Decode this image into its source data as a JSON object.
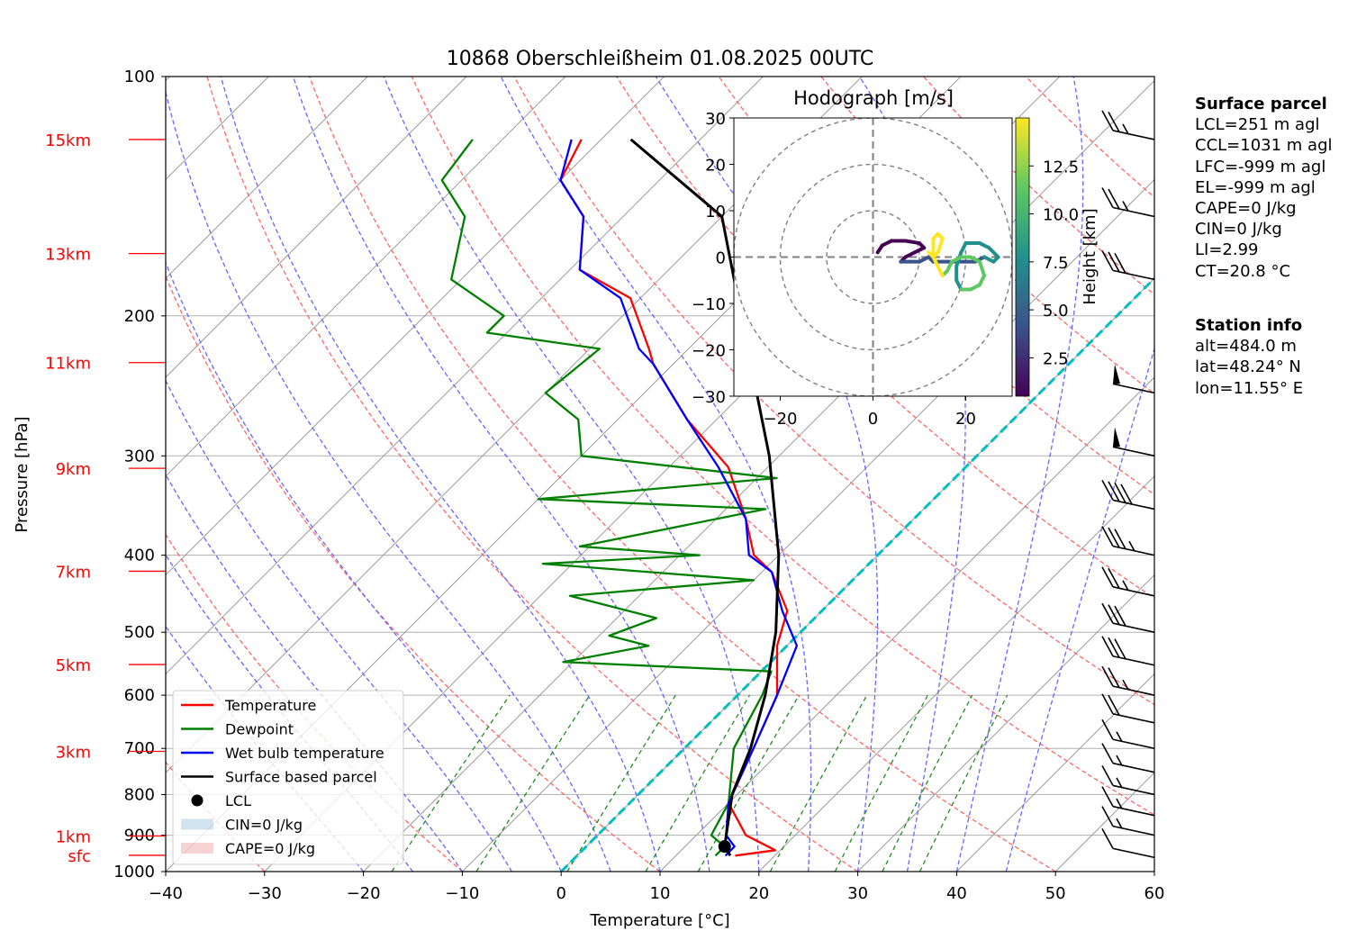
{
  "title": "10868 Oberschleißheim 01.08.2025 00UTC",
  "chart_data": {
    "type": "line",
    "subtype": "skew-t log-p diagram",
    "xlabel": "Temperature [°C]",
    "ylabel": "Pressure [hPa]",
    "xlim": [
      -40,
      60
    ],
    "ylim": [
      1000,
      100
    ],
    "y_scale": "log",
    "x_ticks": [
      -40,
      -30,
      -20,
      -10,
      0,
      10,
      20,
      30,
      40,
      50,
      60
    ],
    "x_tick_labels": [
      "−40",
      "−30",
      "−20",
      "−10",
      "0",
      "10",
      "20",
      "30",
      "40",
      "50",
      "60"
    ],
    "y_ticks": [
      100,
      200,
      300,
      400,
      500,
      600,
      700,
      800,
      900,
      1000
    ],
    "y_tick_labels": [
      "100",
      "200",
      "300",
      "400",
      "500",
      "600",
      "700",
      "800",
      "900",
      "1000"
    ],
    "height_markers": [
      {
        "label": "15km",
        "p": 120
      },
      {
        "label": "13km",
        "p": 167
      },
      {
        "label": "11km",
        "p": 229
      },
      {
        "label": "9km",
        "p": 311
      },
      {
        "label": "7km",
        "p": 419
      },
      {
        "label": "5km",
        "p": 549
      },
      {
        "label": "3km",
        "p": 706
      },
      {
        "label": "1km",
        "p": 902
      },
      {
        "label": "sfc",
        "p": 954
      }
    ],
    "series": [
      {
        "name": "Temperature",
        "color": "#ff0000",
        "points": [
          [
            16,
            955
          ],
          [
            19.5,
            940
          ],
          [
            15,
            900
          ],
          [
            10,
            820
          ],
          [
            7,
            700
          ],
          [
            4,
            600
          ],
          [
            -1,
            520
          ],
          [
            -3.5,
            470
          ],
          [
            -9,
            420
          ],
          [
            -12.5,
            400
          ],
          [
            -17,
            360
          ],
          [
            -24,
            310
          ],
          [
            -33,
            270
          ],
          [
            -42,
            230
          ],
          [
            -44,
            220
          ],
          [
            -51,
            190
          ],
          [
            -59,
            175
          ],
          [
            -64,
            150
          ],
          [
            -70,
            135
          ],
          [
            -72,
            120
          ]
        ]
      },
      {
        "name": "Dewpoint",
        "color": "#008000",
        "points": [
          [
            14,
            955
          ],
          [
            14,
            930
          ],
          [
            11.5,
            900
          ],
          [
            10,
            820
          ],
          [
            5,
            700
          ],
          [
            2.5,
            600
          ],
          [
            1,
            560
          ],
          [
            -21,
            545
          ],
          [
            -14,
            520
          ],
          [
            -19,
            505
          ],
          [
            -16,
            480
          ],
          [
            -27,
            450
          ],
          [
            -10,
            430
          ],
          [
            -33,
            410
          ],
          [
            -18,
            400
          ],
          [
            -31,
            390
          ],
          [
            -16,
            350
          ],
          [
            -40,
            340
          ],
          [
            -18,
            320
          ],
          [
            -40,
            300
          ],
          [
            -44,
            270
          ],
          [
            -50,
            250
          ],
          [
            -49,
            220
          ],
          [
            -62,
            210
          ],
          [
            -62,
            200
          ],
          [
            -71,
            180
          ],
          [
            -76,
            150
          ],
          [
            -82,
            135
          ],
          [
            -83,
            120
          ]
        ]
      },
      {
        "name": "Wet bulb temperature",
        "color": "#0000ff",
        "points": [
          [
            15,
            955
          ],
          [
            15,
            930
          ],
          [
            13,
            900
          ],
          [
            10,
            820
          ],
          [
            7,
            700
          ],
          [
            4,
            600
          ],
          [
            1,
            520
          ],
          [
            -4,
            470
          ],
          [
            -9,
            420
          ],
          [
            -13,
            400
          ],
          [
            -17,
            360
          ],
          [
            -25,
            310
          ],
          [
            -33,
            270
          ],
          [
            -42,
            230
          ],
          [
            -45,
            220
          ],
          [
            -52,
            190
          ],
          [
            -59,
            175
          ],
          [
            -64,
            150
          ],
          [
            -70,
            135
          ],
          [
            -73,
            120
          ]
        ]
      },
      {
        "name": "Surface based parcel",
        "color": "#000000",
        "points": [
          [
            15.5,
            955
          ],
          [
            14,
            930
          ],
          [
            12,
            870
          ],
          [
            9.5,
            800
          ],
          [
            6.7,
            700
          ],
          [
            2.8,
            600
          ],
          [
            -2.5,
            500
          ],
          [
            -10,
            400
          ],
          [
            -21,
            300
          ],
          [
            -38,
            200
          ],
          [
            -50,
            150
          ],
          [
            -67,
            120
          ]
        ]
      }
    ],
    "lcl": {
      "name": "LCL",
      "t": 14,
      "p": 930
    },
    "cin_label": "CIN=0 J/kg",
    "cape_label": "CAPE=0 J/kg",
    "wind_barbs": [
      {
        "p": 960,
        "speed_kt": 10
      },
      {
        "p": 900,
        "speed_kt": 15
      },
      {
        "p": 850,
        "speed_kt": 15
      },
      {
        "p": 800,
        "speed_kt": 15
      },
      {
        "p": 750,
        "speed_kt": 15
      },
      {
        "p": 700,
        "speed_kt": 15
      },
      {
        "p": 650,
        "speed_kt": 20
      },
      {
        "p": 600,
        "speed_kt": 25
      },
      {
        "p": 550,
        "speed_kt": 30
      },
      {
        "p": 500,
        "speed_kt": 30
      },
      {
        "p": 450,
        "speed_kt": 25
      },
      {
        "p": 400,
        "speed_kt": 35
      },
      {
        "p": 350,
        "speed_kt": 40
      },
      {
        "p": 300,
        "speed_kt": 50
      },
      {
        "p": 250,
        "speed_kt": 50
      },
      {
        "p": 180,
        "speed_kt": 30
      },
      {
        "p": 150,
        "speed_kt": 25
      },
      {
        "p": 120,
        "speed_kt": 25
      }
    ],
    "legend": {
      "placement": "lower-left",
      "entries": [
        "Temperature",
        "Dewpoint",
        "Wet bulb temperature",
        "Surface based parcel",
        "LCL",
        "CIN=0 J/kg",
        "CAPE=0 J/kg"
      ]
    },
    "grid": true,
    "hodograph": {
      "title": "Hodograph [m/s]",
      "xlim": [
        -30,
        30
      ],
      "ylim": [
        -30,
        30
      ],
      "ticks": [
        -30,
        -20,
        -10,
        0,
        10,
        20,
        30
      ],
      "tick_labels": [
        "−30",
        "−20",
        "−10",
        "0",
        "10",
        "20",
        "30"
      ],
      "x_ticks": [
        -20,
        0,
        20
      ],
      "x_tick_labels": [
        "−20",
        "0",
        "20"
      ],
      "rings": [
        10,
        20,
        30
      ],
      "colorbar_label": "Height [km]",
      "colorbar_ticks": [
        2.5,
        5.0,
        7.5,
        10.0,
        12.5
      ],
      "colorbar_tick_labels": [
        "2.5",
        "5.0",
        "7.5",
        "10.0",
        "12.5"
      ],
      "colorbar_range": [
        0.5,
        15
      ],
      "uv_points": [
        [
          1,
          1
        ],
        [
          2,
          2.5
        ],
        [
          4,
          3.5
        ],
        [
          7,
          3.5
        ],
        [
          10,
          3
        ],
        [
          11,
          2
        ],
        [
          9,
          1
        ],
        [
          7,
          0
        ],
        [
          6,
          -1
        ],
        [
          8,
          -1
        ],
        [
          10,
          -1
        ],
        [
          12,
          0
        ],
        [
          13,
          -1
        ],
        [
          16,
          -1
        ],
        [
          18,
          -1
        ],
        [
          20,
          -1
        ],
        [
          22,
          -1
        ],
        [
          24,
          0
        ],
        [
          26,
          -1
        ],
        [
          27,
          0
        ],
        [
          25,
          2
        ],
        [
          23,
          3
        ],
        [
          20,
          3
        ],
        [
          19,
          1
        ],
        [
          18,
          -2
        ],
        [
          18,
          -5
        ],
        [
          19,
          -7
        ],
        [
          21,
          -7
        ],
        [
          23,
          -6
        ],
        [
          24,
          -4
        ],
        [
          23,
          -1
        ],
        [
          21,
          0
        ],
        [
          19,
          0
        ],
        [
          17,
          -1
        ],
        [
          16,
          -3
        ],
        [
          15,
          -4
        ],
        [
          14,
          -2
        ],
        [
          13,
          0
        ],
        [
          13,
          2
        ],
        [
          13,
          4
        ],
        [
          14,
          5
        ],
        [
          15,
          4
        ],
        [
          14,
          1
        ],
        [
          13,
          0
        ],
        [
          12,
          1
        ]
      ]
    }
  },
  "surface_parcel": {
    "header": "Surface parcel",
    "lines": [
      "LCL=251 m agl",
      "CCL=1031 m agl",
      "LFC=-999 m agl",
      "EL=-999 m agl",
      "CAPE=0 J/kg",
      "CIN=0 J/kg",
      "LI=2.99",
      "CT=20.8 °C"
    ]
  },
  "station_info": {
    "header": "Station info",
    "lines": [
      "alt=484.0 m",
      "lat=48.24° N",
      "lon=11.55° E"
    ]
  },
  "colors": {
    "temperature": "#ff0000",
    "dewpoint": "#008000",
    "wetbulb": "#0000ff",
    "parcel": "#000000",
    "dry_adiabat": "#ff6666",
    "moist_adiabat": "#6666ff",
    "mixing_ratio": "#228b22",
    "zero_isotherm": "#00bfbf",
    "isotherm": "#9a9a9a",
    "height_marker": "#ff0000"
  }
}
